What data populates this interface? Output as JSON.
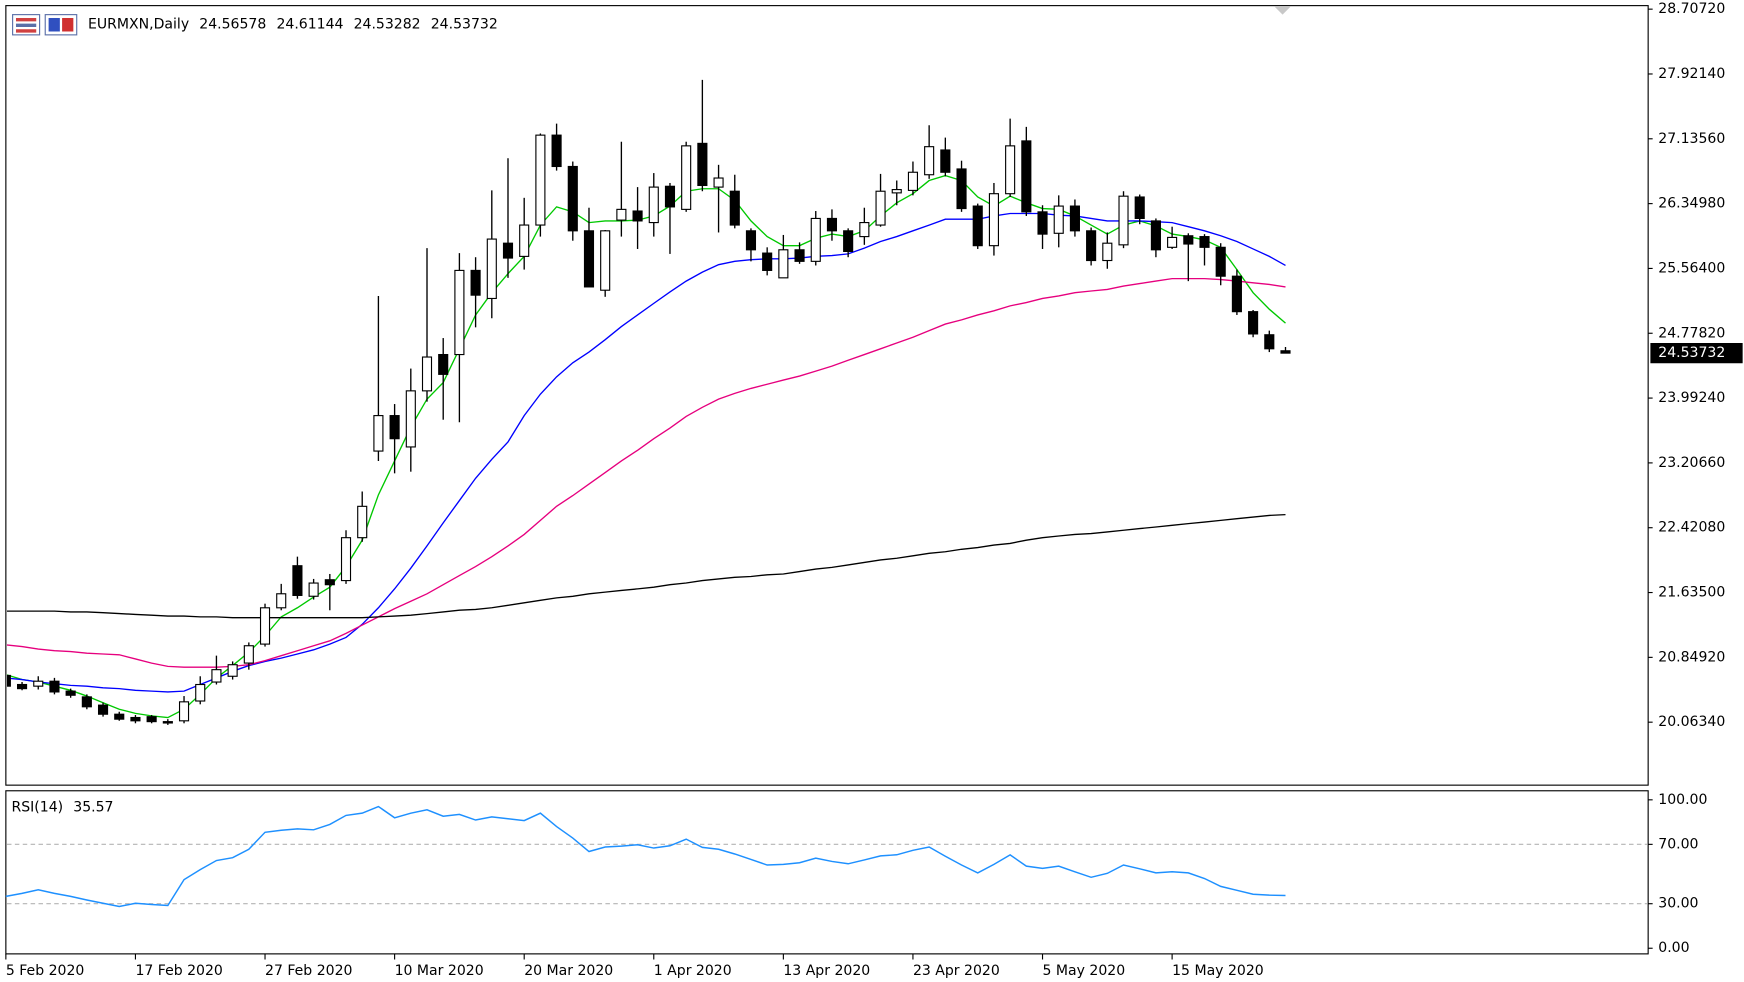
{
  "chart_data": [
    {
      "type": "candlestick",
      "title": "EURMXN,Daily",
      "categories": [
        "5 Feb 2020",
        null,
        null,
        null,
        null,
        null,
        null,
        null,
        "17 Feb 2020",
        null,
        null,
        null,
        null,
        null,
        null,
        null,
        "27 Feb 2020",
        null,
        null,
        null,
        null,
        null,
        null,
        null,
        "10 Mar 2020",
        null,
        null,
        null,
        null,
        null,
        null,
        null,
        "20 Mar 2020",
        null,
        null,
        null,
        null,
        null,
        null,
        null,
        "1 Apr 2020",
        null,
        null,
        null,
        null,
        null,
        null,
        null,
        "13 Apr 2020",
        null,
        null,
        null,
        null,
        null,
        null,
        null,
        "23 Apr 2020",
        null,
        null,
        null,
        null,
        null,
        null,
        null,
        "5 May 2020",
        null,
        null,
        null,
        null,
        null,
        null,
        null,
        "15 May 2020",
        null,
        null,
        null,
        null,
        null,
        null,
        null
      ],
      "open": [
        20.63,
        20.52,
        20.5,
        20.56,
        20.44,
        20.37,
        20.27,
        20.16,
        20.12,
        20.13,
        20.07,
        20.08,
        20.32,
        20.55,
        20.62,
        20.78,
        21.01,
        21.45,
        21.96,
        21.59,
        21.79,
        21.78,
        22.3,
        23.35,
        23.78,
        23.4,
        24.08,
        24.52,
        24.52,
        25.54,
        25.2,
        25.87,
        25.71,
        26.09,
        27.18,
        26.8,
        26.02,
        25.3,
        26.15,
        26.26,
        26.12,
        26.56,
        26.28,
        27.08,
        26.55,
        26.5,
        26.02,
        25.75,
        25.45,
        25.79,
        25.65,
        26.17,
        26.02,
        25.95,
        26.09,
        26.48,
        26.51,
        26.7,
        27.0,
        26.77,
        26.32,
        25.84,
        26.47,
        27.11,
        26.25,
        25.99,
        26.32,
        26.02,
        25.66,
        25.85,
        26.43,
        26.14,
        25.82,
        25.96,
        25.95,
        25.82,
        25.47,
        25.04,
        24.76,
        24.56578
      ],
      "high": [
        20.66,
        20.55,
        20.62,
        20.6,
        20.47,
        20.4,
        20.3,
        20.19,
        20.15,
        20.15,
        20.1,
        20.38,
        20.62,
        20.87,
        20.8,
        21.03,
        21.5,
        21.74,
        22.07,
        21.8,
        21.86,
        22.39,
        22.86,
        25.23,
        23.92,
        24.35,
        25.81,
        24.72,
        25.75,
        25.7,
        26.51,
        26.9,
        26.42,
        27.2,
        27.32,
        26.86,
        26.3,
        26.03,
        27.1,
        26.55,
        26.72,
        26.6,
        27.1,
        27.85,
        26.82,
        26.7,
        26.05,
        25.82,
        25.97,
        25.88,
        26.26,
        26.28,
        26.05,
        26.3,
        26.71,
        26.63,
        26.86,
        27.3,
        27.15,
        26.87,
        26.35,
        26.6,
        27.38,
        27.28,
        26.33,
        26.45,
        26.4,
        26.06,
        26.0,
        26.5,
        26.46,
        26.17,
        26.07,
        25.99,
        25.98,
        25.87,
        25.55,
        25.06,
        24.81,
        24.61144
      ],
      "low": [
        20.47,
        20.45,
        20.46,
        20.4,
        20.36,
        20.22,
        20.13,
        20.08,
        20.05,
        20.05,
        20.03,
        20.05,
        20.28,
        20.52,
        20.58,
        20.7,
        20.98,
        21.42,
        21.56,
        21.55,
        21.42,
        21.74,
        22.25,
        23.23,
        23.08,
        23.1,
        23.95,
        23.73,
        23.7,
        24.85,
        24.96,
        25.45,
        25.55,
        25.95,
        26.75,
        25.9,
        25.34,
        25.22,
        25.95,
        25.8,
        25.95,
        25.74,
        26.25,
        26.5,
        26.0,
        26.05,
        25.65,
        25.48,
        25.45,
        25.62,
        25.6,
        25.9,
        25.7,
        25.85,
        26.07,
        26.33,
        26.45,
        26.65,
        26.68,
        26.25,
        25.8,
        25.72,
        26.43,
        26.2,
        25.8,
        25.82,
        25.95,
        25.6,
        25.56,
        25.81,
        26.1,
        25.7,
        25.8,
        25.41,
        25.6,
        25.36,
        25.0,
        24.73,
        24.55,
        24.53282
      ],
      "close": [
        20.5,
        20.47,
        20.56,
        20.43,
        20.39,
        20.25,
        20.16,
        20.1,
        20.08,
        20.07,
        20.06,
        20.31,
        20.52,
        20.7,
        20.76,
        20.99,
        21.45,
        21.62,
        21.6,
        21.75,
        21.73,
        22.3,
        22.68,
        23.78,
        23.5,
        24.08,
        24.49,
        24.28,
        25.54,
        25.24,
        25.92,
        25.69,
        26.09,
        27.18,
        26.8,
        26.02,
        25.34,
        26.02,
        26.28,
        26.14,
        26.55,
        26.31,
        27.05,
        26.57,
        26.66,
        26.09,
        25.79,
        25.54,
        25.79,
        25.65,
        26.17,
        26.02,
        25.77,
        26.12,
        26.5,
        26.52,
        26.73,
        27.04,
        26.73,
        26.29,
        25.84,
        26.47,
        27.05,
        26.25,
        25.98,
        26.32,
        26.02,
        25.66,
        25.87,
        26.44,
        26.17,
        25.79,
        25.94,
        25.86,
        25.82,
        25.47,
        25.04,
        24.77,
        24.59,
        24.53732
      ],
      "lines": [
        {
          "color": "#00c800",
          "values": [
            20.64,
            20.58,
            20.55,
            20.5,
            20.45,
            20.38,
            20.3,
            20.22,
            20.17,
            20.14,
            20.12,
            20.22,
            20.4,
            20.6,
            20.75,
            20.91,
            21.11,
            21.34,
            21.45,
            21.58,
            21.7,
            21.95,
            22.27,
            22.82,
            23.23,
            23.64,
            23.98,
            24.18,
            24.59,
            25.0,
            25.27,
            25.5,
            25.71,
            26.09,
            26.31,
            26.25,
            26.12,
            26.14,
            26.14,
            26.15,
            26.2,
            26.32,
            26.5,
            26.53,
            26.53,
            26.39,
            26.14,
            25.95,
            25.84,
            25.84,
            25.93,
            25.98,
            25.95,
            26.02,
            26.2,
            26.36,
            26.47,
            26.63,
            26.69,
            26.63,
            26.43,
            26.32,
            26.44,
            26.36,
            26.29,
            26.28,
            26.2,
            26.09,
            25.98,
            26.09,
            26.14,
            26.08,
            25.98,
            25.95,
            25.91,
            25.82,
            25.55,
            25.27,
            25.07,
            24.9
          ]
        },
        {
          "color": "#0000ff",
          "values": [
            20.6,
            20.58,
            20.55,
            20.53,
            20.51,
            20.5,
            20.48,
            20.47,
            20.45,
            20.44,
            20.43,
            20.44,
            20.52,
            20.6,
            20.68,
            20.75,
            20.8,
            20.84,
            20.89,
            20.94,
            21.01,
            21.09,
            21.25,
            21.45,
            21.68,
            21.93,
            22.2,
            22.48,
            22.75,
            23.02,
            23.25,
            23.46,
            23.78,
            24.04,
            24.25,
            24.42,
            24.55,
            24.7,
            24.86,
            25.0,
            25.14,
            25.28,
            25.41,
            25.52,
            25.61,
            25.65,
            25.67,
            25.68,
            25.68,
            25.69,
            25.71,
            25.72,
            25.74,
            25.81,
            25.89,
            25.95,
            26.02,
            26.09,
            26.16,
            26.16,
            26.16,
            26.2,
            26.23,
            26.23,
            26.23,
            26.21,
            26.2,
            26.17,
            26.14,
            26.14,
            26.14,
            26.13,
            26.12,
            26.07,
            26.02,
            25.96,
            25.89,
            25.8,
            25.71,
            25.6
          ]
        },
        {
          "color": "#e6007e",
          "values": [
            21.0,
            20.98,
            20.95,
            20.93,
            20.92,
            20.9,
            20.89,
            20.88,
            20.83,
            20.78,
            20.74,
            20.73,
            20.73,
            20.73,
            20.74,
            20.76,
            20.81,
            20.87,
            20.93,
            20.99,
            21.05,
            21.14,
            21.24,
            21.34,
            21.44,
            21.53,
            21.62,
            21.73,
            21.84,
            21.95,
            22.07,
            22.2,
            22.34,
            22.51,
            22.68,
            22.81,
            22.95,
            23.09,
            23.23,
            23.36,
            23.5,
            23.63,
            23.77,
            23.88,
            23.98,
            24.05,
            24.11,
            24.16,
            24.21,
            24.26,
            24.32,
            24.38,
            24.45,
            24.52,
            24.59,
            24.66,
            24.73,
            24.81,
            24.89,
            24.94,
            25.0,
            25.05,
            25.11,
            25.15,
            25.2,
            25.23,
            25.27,
            25.29,
            25.31,
            25.35,
            25.38,
            25.41,
            25.44,
            25.44,
            25.44,
            25.43,
            25.41,
            25.39,
            25.37,
            25.34
          ]
        },
        {
          "color": "#000000",
          "values": [
            21.41,
            21.41,
            21.41,
            21.41,
            21.4,
            21.4,
            21.39,
            21.38,
            21.37,
            21.36,
            21.35,
            21.35,
            21.34,
            21.34,
            21.33,
            21.33,
            21.33,
            21.33,
            21.33,
            21.33,
            21.33,
            21.33,
            21.33,
            21.34,
            21.35,
            21.36,
            21.38,
            21.4,
            21.42,
            21.43,
            21.45,
            21.48,
            21.51,
            21.54,
            21.57,
            21.59,
            21.62,
            21.64,
            21.66,
            21.68,
            21.7,
            21.73,
            21.75,
            21.78,
            21.8,
            21.82,
            21.83,
            21.85,
            21.86,
            21.89,
            21.92,
            21.94,
            21.97,
            22.0,
            22.03,
            22.05,
            22.08,
            22.11,
            22.13,
            22.16,
            22.18,
            22.21,
            22.23,
            22.27,
            22.3,
            22.32,
            22.34,
            22.35,
            22.37,
            22.39,
            22.41,
            22.43,
            22.45,
            22.47,
            22.49,
            22.51,
            22.53,
            22.55,
            22.57,
            22.58
          ]
        }
      ],
      "ylim": [
        19.3,
        28.75
      ],
      "yticks": [
        {
          "value": 20.0634,
          "label": "20.06340"
        },
        {
          "value": 20.8492,
          "label": "20.84920"
        },
        {
          "value": 21.635,
          "label": "21.63500"
        },
        {
          "value": 22.4208,
          "label": "22.42080"
        },
        {
          "value": 23.2066,
          "label": "23.20660"
        },
        {
          "value": 23.9924,
          "label": "23.99240"
        },
        {
          "value": 24.7782,
          "label": "24.77820"
        },
        {
          "value": 25.564,
          "label": "25.56400"
        },
        {
          "value": 26.3498,
          "label": "26.34980"
        },
        {
          "value": 27.1356,
          "label": "27.13560"
        },
        {
          "value": 27.9214,
          "label": "27.92140"
        },
        {
          "value": 28.7072,
          "label": "28.70720"
        }
      ]
    },
    {
      "type": "line",
      "title": "RSI(14)",
      "color": "#1e90ff",
      "values": [
        34.9,
        37.0,
        39.4,
        37.0,
        34.9,
        32.5,
        30.3,
        28.1,
        30.3,
        29.5,
        28.8,
        46.2,
        53.0,
        59.1,
        61.0,
        66.7,
        78.1,
        79.5,
        80.4,
        79.8,
        83.4,
        89.5,
        91.0,
        95.5,
        87.9,
        91.0,
        93.3,
        89.0,
        90.2,
        86.4,
        88.5,
        87.2,
        86.0,
        91.0,
        82.0,
        74.3,
        65.2,
        68.2,
        68.8,
        69.7,
        67.5,
        69.0,
        73.5,
        68.0,
        66.7,
        63.5,
        59.9,
        56.1,
        56.5,
        57.6,
        60.7,
        58.5,
        56.9,
        59.5,
        62.2,
        63.0,
        66.0,
        68.2,
        62.0,
        56.1,
        50.8,
        56.5,
        62.9,
        55.3,
        53.8,
        55.3,
        51.5,
        47.8,
        50.5,
        56.1,
        53.5,
        50.8,
        51.5,
        50.8,
        47.0,
        41.7,
        39.0,
        36.4,
        35.8,
        35.57
      ],
      "levels": [
        30,
        70
      ],
      "ylim": [
        -3.8,
        106.1
      ],
      "yticks": [
        {
          "value": 0,
          "label": "0.00"
        },
        {
          "value": 30,
          "label": "30.00"
        },
        {
          "value": 70,
          "label": "70.00"
        },
        {
          "value": 100,
          "label": "100.00"
        }
      ]
    }
  ]
}
